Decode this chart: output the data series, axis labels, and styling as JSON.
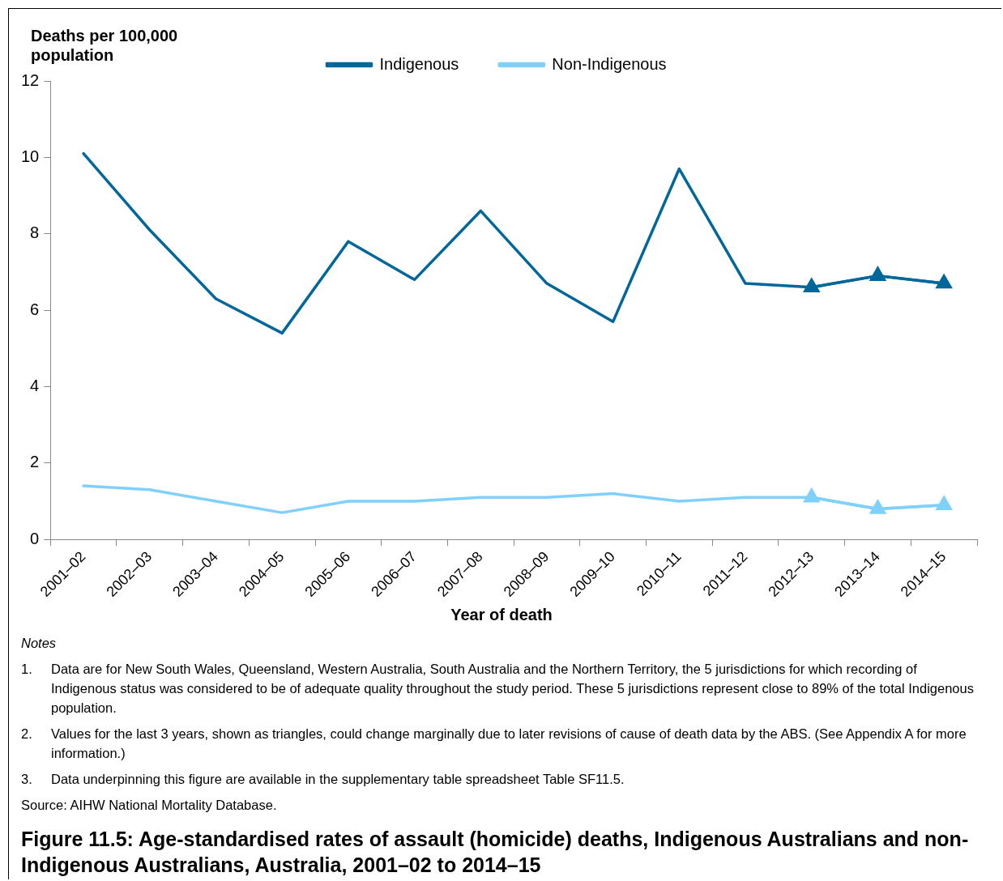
{
  "chart_data": {
    "type": "line",
    "title": "Figure 11.5: Age-standardised rates of assault (homicide) deaths, Indigenous Australians and non-Indigenous Australians, Australia, 2001–02 to 2014–15",
    "xlabel": "Year of death",
    "ylabel": "Deaths per 100,000 population",
    "categories": [
      "2001–02",
      "2002–03",
      "2003–04",
      "2004–05",
      "2005–06",
      "2006–07",
      "2007–08",
      "2008–09",
      "2009–10",
      "2010–11",
      "2011–12",
      "2012–13",
      "2013–14",
      "2014–15"
    ],
    "series": [
      {
        "name": "Indigenous",
        "color": "#00679b",
        "marker": "none",
        "values": [
          10.1,
          8.1,
          6.3,
          5.4,
          7.8,
          6.8,
          8.6,
          6.7,
          5.7,
          9.7,
          6.7,
          6.6,
          6.9,
          6.7
        ]
      },
      {
        "name": "Non-Indigenous",
        "color": "#7fd1fb",
        "marker": "none",
        "values": [
          1.4,
          1.3,
          1.0,
          0.7,
          1.0,
          1.0,
          1.1,
          1.1,
          1.2,
          1.0,
          1.1,
          1.1,
          0.8,
          0.9
        ]
      },
      {
        "color": "#00679b",
        "marker": "triangle",
        "values": [
          null,
          null,
          null,
          null,
          null,
          null,
          null,
          null,
          null,
          null,
          null,
          6.6,
          6.9,
          6.7
        ]
      },
      {
        "color": "#7fd1fb",
        "marker": "triangle",
        "values": [
          null,
          null,
          null,
          null,
          null,
          null,
          null,
          null,
          null,
          null,
          null,
          1.1,
          0.8,
          0.9
        ]
      }
    ],
    "ylim": [
      0,
      12
    ],
    "yticks": [
      0,
      2,
      4,
      6,
      8,
      10,
      12
    ],
    "grid": false,
    "legend": "top",
    "line_style": "solid",
    "annotations": [
      "Notes",
      "1.\tData are for New South Wales, Queensland, Western Australia, South Australia and the Northern Territory, the 5 jurisdictions for which recording of Indigenous status was considered to be of adequate quality throughout the study period. These 5 jurisdictions represent close to 89% of the total Indigenous population.",
      "2.\tValues for the last 3 years, shown as triangles, could change marginally due to later revisions of cause of death data by the ABS. (See Appendix A for more information.)",
      "3.\tData underpinning this figure are available in the supplementary table spreadsheet Table SF11.5.",
      "Source: AIHW National Mortality Database."
    ]
  }
}
